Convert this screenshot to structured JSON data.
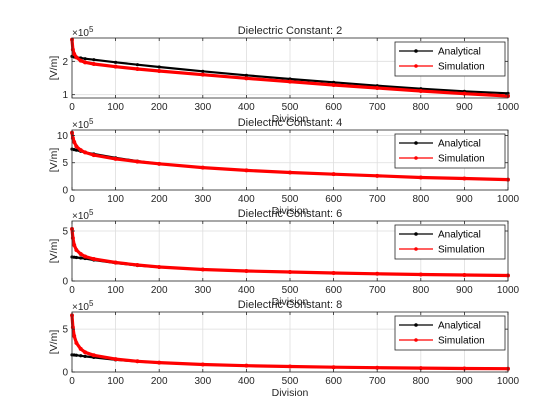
{
  "chart_data": [
    {
      "type": "line",
      "title": "Dielectric Constant: 2",
      "xlabel": "Division",
      "ylabel": "[V/m]",
      "y_multiplier": "×10^5",
      "xlim": [
        0,
        1000
      ],
      "ylim": [
        0.9,
        2.7
      ],
      "xticks": [
        0,
        100,
        200,
        300,
        400,
        500,
        600,
        700,
        800,
        900,
        1000
      ],
      "yticks": [
        1,
        2
      ],
      "grid": true,
      "legend_position": "top-right",
      "series": [
        {
          "name": "Analytical",
          "color": "#000000",
          "x": [
            0,
            5,
            10,
            20,
            30,
            50,
            100,
            150,
            200,
            300,
            400,
            500,
            600,
            700,
            800,
            900,
            1000
          ],
          "y": [
            2.15,
            2.13,
            2.12,
            2.1,
            2.08,
            2.05,
            1.97,
            1.9,
            1.83,
            1.7,
            1.58,
            1.47,
            1.37,
            1.27,
            1.18,
            1.1,
            1.04
          ]
        },
        {
          "name": "Simulation",
          "color": "#ff0000",
          "x": [
            0,
            2,
            5,
            10,
            20,
            30,
            50,
            100,
            150,
            200,
            300,
            400,
            500,
            600,
            700,
            800,
            900,
            1000
          ],
          "y": [
            2.65,
            2.35,
            2.22,
            2.12,
            2.02,
            1.97,
            1.92,
            1.84,
            1.77,
            1.71,
            1.6,
            1.49,
            1.39,
            1.29,
            1.2,
            1.11,
            1.03,
            0.96
          ]
        }
      ]
    },
    {
      "type": "line",
      "title": "Dielectric Constant: 4",
      "xlabel": "Division",
      "ylabel": "[V/m]",
      "y_multiplier": "×10^5",
      "xlim": [
        0,
        1000
      ],
      "ylim": [
        0,
        11
      ],
      "xticks": [
        0,
        100,
        200,
        300,
        400,
        500,
        600,
        700,
        800,
        900,
        1000
      ],
      "yticks": [
        0,
        5,
        10
      ],
      "grid": true,
      "legend_position": "top-right",
      "series": [
        {
          "name": "Analytical",
          "color": "#000000",
          "x": [
            0,
            5,
            10,
            20,
            30,
            50,
            100,
            150,
            200,
            300,
            400,
            500,
            600,
            700,
            800,
            900,
            1000
          ],
          "y": [
            7.5,
            7.4,
            7.3,
            7.1,
            6.9,
            6.6,
            5.9,
            5.3,
            4.8,
            4.1,
            3.6,
            3.2,
            2.9,
            2.6,
            2.3,
            2.1,
            1.9
          ]
        },
        {
          "name": "Simulation",
          "color": "#ff0000",
          "x": [
            0,
            2,
            5,
            10,
            20,
            30,
            50,
            100,
            150,
            200,
            300,
            400,
            500,
            600,
            700,
            800,
            900,
            1000
          ],
          "y": [
            10.5,
            9.5,
            8.8,
            8.0,
            7.3,
            6.9,
            6.4,
            5.7,
            5.2,
            4.8,
            4.1,
            3.6,
            3.2,
            2.9,
            2.6,
            2.3,
            2.1,
            1.9
          ]
        }
      ]
    },
    {
      "type": "line",
      "title": "Dielectric Constant: 6",
      "xlabel": "Division",
      "ylabel": "[V/m]",
      "y_multiplier": "×10^5",
      "xlim": [
        0,
        1000
      ],
      "ylim": [
        0,
        6
      ],
      "xticks": [
        0,
        100,
        200,
        300,
        400,
        500,
        600,
        700,
        800,
        900,
        1000
      ],
      "yticks": [
        0,
        5
      ],
      "grid": true,
      "legend_position": "top-right",
      "series": [
        {
          "name": "Analytical",
          "color": "#000000",
          "x": [
            0,
            5,
            10,
            20,
            30,
            50,
            100,
            150,
            200,
            300,
            400,
            500,
            600,
            700,
            800,
            900,
            1000
          ],
          "y": [
            2.4,
            2.38,
            2.35,
            2.3,
            2.25,
            2.1,
            1.8,
            1.55,
            1.38,
            1.15,
            1.0,
            0.9,
            0.8,
            0.72,
            0.65,
            0.6,
            0.55
          ]
        },
        {
          "name": "Simulation",
          "color": "#ff0000",
          "x": [
            0,
            2,
            5,
            10,
            20,
            30,
            50,
            100,
            150,
            200,
            300,
            400,
            500,
            600,
            700,
            800,
            900,
            1000
          ],
          "y": [
            5.2,
            4.3,
            3.6,
            3.1,
            2.7,
            2.45,
            2.2,
            1.85,
            1.6,
            1.4,
            1.15,
            1.0,
            0.9,
            0.8,
            0.72,
            0.65,
            0.6,
            0.55
          ]
        }
      ]
    },
    {
      "type": "line",
      "title": "Dielectric Constant: 8",
      "xlabel": "Division",
      "ylabel": "[V/m]",
      "y_multiplier": "×10^5",
      "xlim": [
        0,
        1000
      ],
      "ylim": [
        0,
        7
      ],
      "xticks": [
        0,
        100,
        200,
        300,
        400,
        500,
        600,
        700,
        800,
        900,
        1000
      ],
      "yticks": [
        0,
        5
      ],
      "grid": true,
      "legend_position": "top-right",
      "series": [
        {
          "name": "Analytical",
          "color": "#000000",
          "x": [
            0,
            5,
            10,
            20,
            30,
            50,
            100,
            150,
            200,
            300,
            400,
            500,
            600,
            700,
            800,
            900,
            1000
          ],
          "y": [
            2.0,
            1.98,
            1.95,
            1.9,
            1.82,
            1.7,
            1.42,
            1.22,
            1.07,
            0.87,
            0.73,
            0.63,
            0.55,
            0.49,
            0.44,
            0.4,
            0.37
          ]
        },
        {
          "name": "Simulation",
          "color": "#ff0000",
          "x": [
            0,
            2,
            5,
            10,
            20,
            30,
            50,
            100,
            150,
            200,
            300,
            400,
            500,
            600,
            700,
            800,
            900,
            1000
          ],
          "y": [
            6.6,
            5.2,
            4.2,
            3.4,
            2.7,
            2.3,
            1.95,
            1.5,
            1.25,
            1.1,
            0.88,
            0.74,
            0.64,
            0.56,
            0.5,
            0.45,
            0.41,
            0.38
          ]
        }
      ]
    }
  ]
}
